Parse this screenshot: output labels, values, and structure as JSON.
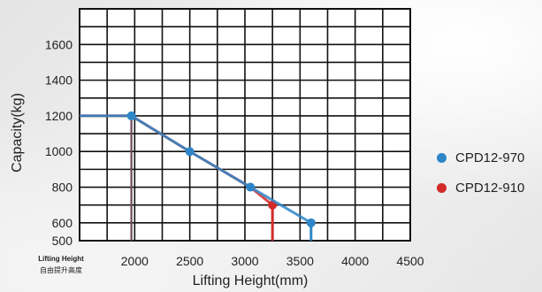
{
  "chart_data": {
    "type": "line",
    "xlabel": "Lifting Height(mm)",
    "ylabel": "Capacity(kg)",
    "x_prefix_label_en": "Lifting Height",
    "x_prefix_label_cn": "自由提升高度",
    "xlim": [
      1500,
      4500
    ],
    "ylim": [
      500,
      1800
    ],
    "x_ticks": [
      2000,
      2500,
      3000,
      3500,
      4000,
      4500
    ],
    "y_ticks": [
      500,
      600,
      800,
      1000,
      1200,
      1400,
      1600
    ],
    "grid": true,
    "legend_position": "right",
    "series": [
      {
        "name": "CPD12-970",
        "color": "#2e86c8",
        "points": [
          [
            1500,
            1200
          ],
          [
            1970,
            1200
          ],
          [
            2500,
            1000
          ],
          [
            3050,
            800
          ],
          [
            3600,
            600
          ]
        ],
        "marker_x": [
          1970,
          2500,
          3050,
          3600
        ],
        "drop_x": 3600
      },
      {
        "name": "CPD12-910",
        "color": "#d42a2a",
        "points": [
          [
            1500,
            1200
          ],
          [
            1970,
            1200
          ],
          [
            2500,
            1000
          ],
          [
            3050,
            800
          ],
          [
            3250,
            700
          ]
        ],
        "marker_x": [
          3250
        ],
        "drop_x": 3250
      }
    ],
    "free_lift_x": 1970
  }
}
